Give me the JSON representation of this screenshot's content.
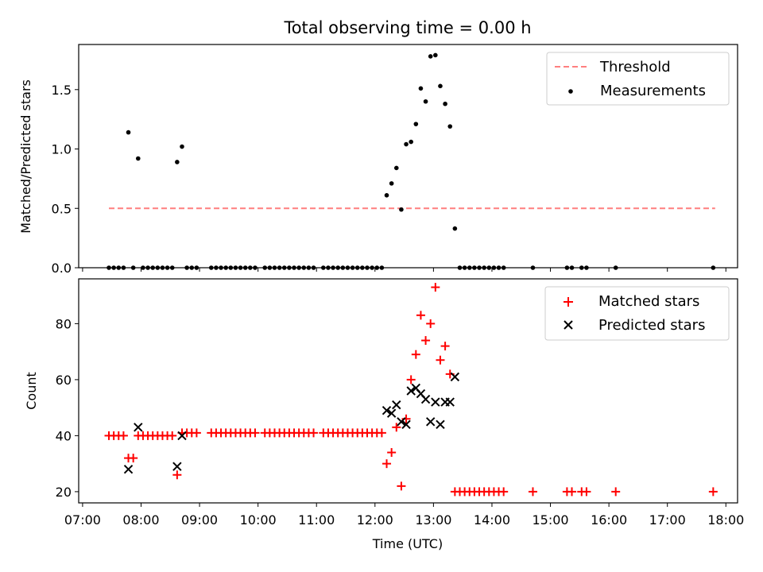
{
  "chart_data": [
    {
      "type": "scatter",
      "title": "Total observing time = 0.00 h",
      "xlabel": "",
      "ylabel": "Matched/Predicted stars",
      "xlim": [
        "06:56",
        "18:12"
      ],
      "ylim": [
        0,
        1.88
      ],
      "yticks": [
        0.0,
        0.5,
        1.0,
        1.5
      ],
      "ytick_labels": [
        "0.0",
        "0.5",
        "1.0",
        "1.5"
      ],
      "grid": false,
      "legend_position": "top-right",
      "threshold": {
        "name": "Threshold",
        "value": 0.5,
        "x_range": [
          "07:27",
          "17:49"
        ],
        "color": "#ff7f7f"
      },
      "series": [
        {
          "name": "Measurements",
          "color": "#000000",
          "marker": "dot",
          "points": [
            [
              "07:27",
              0
            ],
            [
              "07:32",
              0
            ],
            [
              "07:37",
              0
            ],
            [
              "07:42",
              0
            ],
            [
              "07:47",
              1.14
            ],
            [
              "07:52",
              0
            ],
            [
              "07:57",
              0.92
            ],
            [
              "08:02",
              0
            ],
            [
              "08:07",
              0
            ],
            [
              "08:12",
              0
            ],
            [
              "08:17",
              0
            ],
            [
              "08:22",
              0
            ],
            [
              "08:27",
              0
            ],
            [
              "08:32",
              0
            ],
            [
              "08:37",
              0.89
            ],
            [
              "08:42",
              1.02
            ],
            [
              "08:47",
              0
            ],
            [
              "08:52",
              0
            ],
            [
              "08:57",
              0
            ],
            [
              "09:12",
              0
            ],
            [
              "09:17",
              0
            ],
            [
              "09:22",
              0
            ],
            [
              "09:27",
              0
            ],
            [
              "09:32",
              0
            ],
            [
              "09:37",
              0
            ],
            [
              "09:42",
              0
            ],
            [
              "09:47",
              0
            ],
            [
              "09:52",
              0
            ],
            [
              "09:57",
              0
            ],
            [
              "10:07",
              0
            ],
            [
              "10:12",
              0
            ],
            [
              "10:17",
              0
            ],
            [
              "10:22",
              0
            ],
            [
              "10:27",
              0
            ],
            [
              "10:32",
              0
            ],
            [
              "10:37",
              0
            ],
            [
              "10:42",
              0
            ],
            [
              "10:47",
              0
            ],
            [
              "10:52",
              0
            ],
            [
              "10:57",
              0
            ],
            [
              "11:07",
              0
            ],
            [
              "11:12",
              0
            ],
            [
              "11:17",
              0
            ],
            [
              "11:22",
              0
            ],
            [
              "11:27",
              0
            ],
            [
              "11:32",
              0
            ],
            [
              "11:37",
              0
            ],
            [
              "11:42",
              0
            ],
            [
              "11:47",
              0
            ],
            [
              "11:52",
              0
            ],
            [
              "11:57",
              0
            ],
            [
              "12:02",
              0
            ],
            [
              "12:07",
              0
            ],
            [
              "12:12",
              0.61
            ],
            [
              "12:17",
              0.71
            ],
            [
              "12:22",
              0.84
            ],
            [
              "12:27",
              0.49
            ],
            [
              "12:32",
              1.04
            ],
            [
              "12:37",
              1.06
            ],
            [
              "12:42",
              1.21
            ],
            [
              "12:47",
              1.51
            ],
            [
              "12:52",
              1.4
            ],
            [
              "12:57",
              1.78
            ],
            [
              "13:02",
              1.79
            ],
            [
              "13:07",
              1.53
            ],
            [
              "13:12",
              1.38
            ],
            [
              "13:17",
              1.19
            ],
            [
              "13:22",
              0.33
            ],
            [
              "13:27",
              0
            ],
            [
              "13:32",
              0
            ],
            [
              "13:37",
              0
            ],
            [
              "13:42",
              0
            ],
            [
              "13:47",
              0
            ],
            [
              "13:52",
              0
            ],
            [
              "13:57",
              0
            ],
            [
              "14:02",
              0
            ],
            [
              "14:07",
              0
            ],
            [
              "14:12",
              0
            ],
            [
              "14:42",
              0
            ],
            [
              "15:17",
              0
            ],
            [
              "15:22",
              0
            ],
            [
              "15:32",
              0
            ],
            [
              "15:37",
              0
            ],
            [
              "16:07",
              0
            ],
            [
              "17:47",
              0
            ]
          ]
        }
      ]
    },
    {
      "type": "scatter",
      "title": "",
      "xlabel": "Time (UTC)",
      "ylabel": "Count",
      "xlim": [
        "06:56",
        "18:12"
      ],
      "xticks": [
        "07:00",
        "08:00",
        "09:00",
        "10:00",
        "11:00",
        "12:00",
        "13:00",
        "14:00",
        "15:00",
        "16:00",
        "17:00",
        "18:00"
      ],
      "ylim": [
        16,
        96
      ],
      "yticks": [
        20,
        40,
        60,
        80
      ],
      "ytick_labels": [
        "20",
        "40",
        "60",
        "80"
      ],
      "grid": false,
      "legend_position": "top-right",
      "series": [
        {
          "name": "Matched stars",
          "color": "#ff0000",
          "marker": "plus",
          "points": [
            [
              "07:27",
              40
            ],
            [
              "07:32",
              40
            ],
            [
              "07:37",
              40
            ],
            [
              "07:42",
              40
            ],
            [
              "07:47",
              32
            ],
            [
              "07:52",
              32
            ],
            [
              "07:57",
              40
            ],
            [
              "08:02",
              40
            ],
            [
              "08:07",
              40
            ],
            [
              "08:12",
              40
            ],
            [
              "08:17",
              40
            ],
            [
              "08:22",
              40
            ],
            [
              "08:27",
              40
            ],
            [
              "08:32",
              40
            ],
            [
              "08:37",
              26
            ],
            [
              "08:42",
              41
            ],
            [
              "08:47",
              41
            ],
            [
              "08:52",
              41
            ],
            [
              "08:57",
              41
            ],
            [
              "09:12",
              41
            ],
            [
              "09:17",
              41
            ],
            [
              "09:22",
              41
            ],
            [
              "09:27",
              41
            ],
            [
              "09:32",
              41
            ],
            [
              "09:37",
              41
            ],
            [
              "09:42",
              41
            ],
            [
              "09:47",
              41
            ],
            [
              "09:52",
              41
            ],
            [
              "09:57",
              41
            ],
            [
              "10:07",
              41
            ],
            [
              "10:12",
              41
            ],
            [
              "10:17",
              41
            ],
            [
              "10:22",
              41
            ],
            [
              "10:27",
              41
            ],
            [
              "10:32",
              41
            ],
            [
              "10:37",
              41
            ],
            [
              "10:42",
              41
            ],
            [
              "10:47",
              41
            ],
            [
              "10:52",
              41
            ],
            [
              "10:57",
              41
            ],
            [
              "11:07",
              41
            ],
            [
              "11:12",
              41
            ],
            [
              "11:17",
              41
            ],
            [
              "11:22",
              41
            ],
            [
              "11:27",
              41
            ],
            [
              "11:32",
              41
            ],
            [
              "11:37",
              41
            ],
            [
              "11:42",
              41
            ],
            [
              "11:47",
              41
            ],
            [
              "11:52",
              41
            ],
            [
              "11:57",
              41
            ],
            [
              "12:02",
              41
            ],
            [
              "12:07",
              41
            ],
            [
              "12:12",
              30
            ],
            [
              "12:17",
              34
            ],
            [
              "12:22",
              43
            ],
            [
              "12:27",
              22
            ],
            [
              "12:32",
              46
            ],
            [
              "12:37",
              60
            ],
            [
              "12:42",
              69
            ],
            [
              "12:47",
              83
            ],
            [
              "12:52",
              74
            ],
            [
              "12:57",
              80
            ],
            [
              "13:02",
              93
            ],
            [
              "13:07",
              67
            ],
            [
              "13:12",
              72
            ],
            [
              "13:17",
              62
            ],
            [
              "13:22",
              20
            ],
            [
              "13:27",
              20
            ],
            [
              "13:32",
              20
            ],
            [
              "13:37",
              20
            ],
            [
              "13:42",
              20
            ],
            [
              "13:47",
              20
            ],
            [
              "13:52",
              20
            ],
            [
              "13:57",
              20
            ],
            [
              "14:02",
              20
            ],
            [
              "14:07",
              20
            ],
            [
              "14:12",
              20
            ],
            [
              "14:42",
              20
            ],
            [
              "15:17",
              20
            ],
            [
              "15:22",
              20
            ],
            [
              "15:32",
              20
            ],
            [
              "15:37",
              20
            ],
            [
              "16:07",
              20
            ],
            [
              "17:47",
              20
            ]
          ]
        },
        {
          "name": "Predicted stars",
          "color": "#000000",
          "marker": "x",
          "points": [
            [
              "07:47",
              28
            ],
            [
              "07:57",
              43
            ],
            [
              "08:37",
              29
            ],
            [
              "08:42",
              40
            ],
            [
              "12:12",
              49
            ],
            [
              "12:17",
              48
            ],
            [
              "12:22",
              51
            ],
            [
              "12:27",
              45
            ],
            [
              "12:32",
              44
            ],
            [
              "12:37",
              56
            ],
            [
              "12:42",
              57
            ],
            [
              "12:47",
              55
            ],
            [
              "12:52",
              53
            ],
            [
              "12:57",
              45
            ],
            [
              "13:02",
              52
            ],
            [
              "13:07",
              44
            ],
            [
              "13:12",
              52
            ],
            [
              "13:17",
              52
            ],
            [
              "13:22",
              61
            ]
          ]
        }
      ]
    }
  ]
}
